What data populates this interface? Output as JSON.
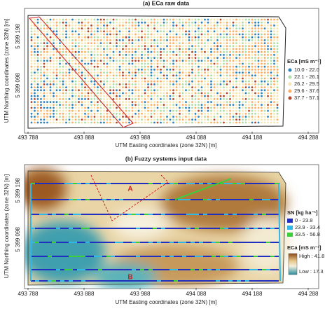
{
  "panel_a": {
    "title": "(a) ECa raw data",
    "y_label": "UTM Northing coordinates (zone 32N) [m]",
    "y_ticks": [
      "5 399 198",
      "5 399 098"
    ],
    "x_ticks": [
      "493 788",
      "493 888",
      "493 988",
      "494 088",
      "494 188",
      "494 288"
    ],
    "x_label": "UTM Easting coordinates (zone 32N) [m]",
    "legend": {
      "title": "ECa [mS m⁻¹]",
      "items": [
        {
          "label": "10.0 - 22.0",
          "color": "#2b83ba"
        },
        {
          "label": "22.1 - 26.1",
          "color": "#abdda4"
        },
        {
          "label": "26.2 - 29.5",
          "color": "#f5e6b0"
        },
        {
          "label": "29.6 - 37.6",
          "color": "#fdae61"
        },
        {
          "label": "37.7 - 57.1",
          "color": "#b2452a"
        }
      ]
    }
  },
  "panel_b": {
    "title": "(b) Fuzzy systems input data",
    "y_label": "UTM Northing coordinates (zone 32N) [m]",
    "y_ticks": [
      "5 399 198",
      "5 399 098"
    ],
    "x_ticks": [
      "493 788",
      "493 888",
      "493 988",
      "494 088",
      "494 188",
      "494 288"
    ],
    "x_label": "UTM Easting coordinates (zone 32N) [m]",
    "zone_labels": [
      "A",
      "B"
    ],
    "sn_legend": {
      "title": "SN [kg ha⁻¹]",
      "items": [
        {
          "label": "0 - 23.8",
          "color": "#1f2fbf"
        },
        {
          "label": "23.9 - 33.4",
          "color": "#2fb8e8"
        },
        {
          "label": "33.5 - 56.8",
          "color": "#3ccf3c"
        }
      ]
    },
    "eca_legend": {
      "title": "ECa [mS m⁻¹]",
      "high": "High : 41.8",
      "low": "Low : 17.3"
    }
  }
}
